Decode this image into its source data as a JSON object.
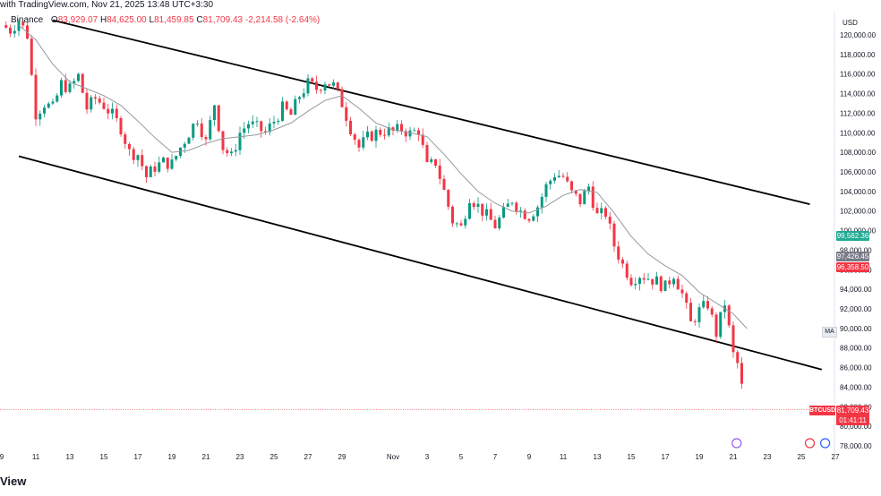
{
  "header": {
    "source_text": "with TradingView.com, Nov 21, 2025 13:48 UTC+3:30",
    "exchange_text": "Binance",
    "ohlc": {
      "open_label": "O",
      "open": "83,929.07",
      "high_label": "H",
      "high": "84,625.00",
      "low_label": "L",
      "low": "81,459.85",
      "close_label": "C",
      "close": "81,709.43",
      "change": "-2,214.58 (-2.64%)"
    }
  },
  "branding": {
    "text": "View"
  },
  "axis_currency": "USD",
  "colors": {
    "up": "#089981",
    "down": "#f23645",
    "ma": "#9598a1",
    "channel": "#000000",
    "green_tag": "#22ab94",
    "gray_tag": "#787b86"
  },
  "tags": {
    "green": "99,562.36",
    "gray": "97,426.45",
    "red": "96,358.50",
    "ma": "MA",
    "ticker": "BTCUSD",
    "last_price": "81,709.43",
    "countdown": "01:41:11"
  },
  "chart_data": {
    "type": "candlestick",
    "symbol": "BTCUSD",
    "ylim": [
      77000,
      122000
    ],
    "y_ticks": [
      {
        "value": 120000,
        "label": "120,000.00"
      },
      {
        "value": 118000,
        "label": "118,000.00"
      },
      {
        "value": 116000,
        "label": "116,000.00"
      },
      {
        "value": 114000,
        "label": "114,000.00"
      },
      {
        "value": 112000,
        "label": "112,000.00"
      },
      {
        "value": 110000,
        "label": "110,000.00"
      },
      {
        "value": 108000,
        "label": "108,000.00"
      },
      {
        "value": 106000,
        "label": "106,000.00"
      },
      {
        "value": 104000,
        "label": "104,000.00"
      },
      {
        "value": 102000,
        "label": "102,000.00"
      },
      {
        "value": 100000,
        "label": "100,000.00"
      },
      {
        "value": 98000,
        "label": "98,000.00"
      },
      {
        "value": 96000,
        "label": "96,000.00"
      },
      {
        "value": 94000,
        "label": "94,000.00"
      },
      {
        "value": 92000,
        "label": "92,000.00"
      },
      {
        "value": 90000,
        "label": "90,000.00"
      },
      {
        "value": 88000,
        "label": "88,000.00"
      },
      {
        "value": 86000,
        "label": "86,000.00"
      },
      {
        "value": 84000,
        "label": "84,000.00"
      },
      {
        "value": 82000,
        "label": "82,000.00"
      },
      {
        "value": 80000,
        "label": "80,000.00"
      },
      {
        "value": 78000,
        "label": "78,000.00"
      }
    ],
    "x_ticks": [
      {
        "day": 0,
        "label": "9"
      },
      {
        "day": 2,
        "label": "11"
      },
      {
        "day": 4,
        "label": "13"
      },
      {
        "day": 6,
        "label": "15"
      },
      {
        "day": 8,
        "label": "17"
      },
      {
        "day": 10,
        "label": "19"
      },
      {
        "day": 12,
        "label": "21"
      },
      {
        "day": 14,
        "label": "23"
      },
      {
        "day": 16,
        "label": "25"
      },
      {
        "day": 18,
        "label": "27"
      },
      {
        "day": 20,
        "label": "29"
      },
      {
        "day": 23,
        "label": "Nov"
      },
      {
        "day": 25,
        "label": "3"
      },
      {
        "day": 27,
        "label": "5"
      },
      {
        "day": 29,
        "label": "7"
      },
      {
        "day": 31,
        "label": "9"
      },
      {
        "day": 33,
        "label": "11"
      },
      {
        "day": 35,
        "label": "13"
      },
      {
        "day": 37,
        "label": "15"
      },
      {
        "day": 39,
        "label": "17"
      },
      {
        "day": 41,
        "label": "19"
      },
      {
        "day": 43,
        "label": "21"
      },
      {
        "day": 45,
        "label": "23"
      },
      {
        "day": 47,
        "label": "25"
      },
      {
        "day": 49,
        "label": "27"
      }
    ],
    "close_series": [
      {
        "day": 0.0,
        "close": 121000
      },
      {
        "day": 0.5,
        "close": 120500
      },
      {
        "day": 1.0,
        "close": 121500
      },
      {
        "day": 1.5,
        "close": 120000
      },
      {
        "day": 1.8,
        "close": 115000
      },
      {
        "day": 2.0,
        "close": 112000
      },
      {
        "day": 2.5,
        "close": 113000
      },
      {
        "day": 3.0,
        "close": 112500
      },
      {
        "day": 3.5,
        "close": 115000
      },
      {
        "day": 4.0,
        "close": 114500
      },
      {
        "day": 4.5,
        "close": 115800
      },
      {
        "day": 5.0,
        "close": 112500
      },
      {
        "day": 5.5,
        "close": 113500
      },
      {
        "day": 6.0,
        "close": 112800
      },
      {
        "day": 6.5,
        "close": 111800
      },
      {
        "day": 7.0,
        "close": 110500
      },
      {
        "day": 7.5,
        "close": 108000
      },
      {
        "day": 8.0,
        "close": 107800
      },
      {
        "day": 8.5,
        "close": 105500
      },
      {
        "day": 9.0,
        "close": 106500
      },
      {
        "day": 9.5,
        "close": 107000
      },
      {
        "day": 10.0,
        "close": 106800
      },
      {
        "day": 10.5,
        "close": 108500
      },
      {
        "day": 11.0,
        "close": 110000
      },
      {
        "day": 11.5,
        "close": 111500
      },
      {
        "day": 12.0,
        "close": 109000
      },
      {
        "day": 12.5,
        "close": 113000
      },
      {
        "day": 13.0,
        "close": 108500
      },
      {
        "day": 13.5,
        "close": 107500
      },
      {
        "day": 14.0,
        "close": 110000
      },
      {
        "day": 14.5,
        "close": 111000
      },
      {
        "day": 15.0,
        "close": 110500
      },
      {
        "day": 15.5,
        "close": 110000
      },
      {
        "day": 16.0,
        "close": 111200
      },
      {
        "day": 16.5,
        "close": 112500
      },
      {
        "day": 17.0,
        "close": 111800
      },
      {
        "day": 17.5,
        "close": 113800
      },
      {
        "day": 18.0,
        "close": 115000
      },
      {
        "day": 18.5,
        "close": 114500
      },
      {
        "day": 19.0,
        "close": 115300
      },
      {
        "day": 19.5,
        "close": 114800
      },
      {
        "day": 20.0,
        "close": 113000
      },
      {
        "day": 20.5,
        "close": 110500
      },
      {
        "day": 21.0,
        "close": 108500
      },
      {
        "day": 21.5,
        "close": 109500
      },
      {
        "day": 22.0,
        "close": 110000
      },
      {
        "day": 22.5,
        "close": 110200
      },
      {
        "day": 23.0,
        "close": 110100
      },
      {
        "day": 23.5,
        "close": 110400
      },
      {
        "day": 24.0,
        "close": 109900
      },
      {
        "day": 24.5,
        "close": 110300
      },
      {
        "day": 25.0,
        "close": 106500
      },
      {
        "day": 25.5,
        "close": 107000
      },
      {
        "day": 26.0,
        "close": 104000
      },
      {
        "day": 26.5,
        "close": 101000
      },
      {
        "day": 27.0,
        "close": 100300
      },
      {
        "day": 27.5,
        "close": 103500
      },
      {
        "day": 28.0,
        "close": 102500
      },
      {
        "day": 28.5,
        "close": 101500
      },
      {
        "day": 29.0,
        "close": 100500
      },
      {
        "day": 29.5,
        "close": 101800
      },
      {
        "day": 30.0,
        "close": 103200
      },
      {
        "day": 30.5,
        "close": 102000
      },
      {
        "day": 31.0,
        "close": 101500
      },
      {
        "day": 31.5,
        "close": 102500
      },
      {
        "day": 32.0,
        "close": 104500
      },
      {
        "day": 32.5,
        "close": 105800
      },
      {
        "day": 33.0,
        "close": 105500
      },
      {
        "day": 33.5,
        "close": 103800
      },
      {
        "day": 34.0,
        "close": 103000
      },
      {
        "day": 34.5,
        "close": 104500
      },
      {
        "day": 35.0,
        "close": 101500
      },
      {
        "day": 35.5,
        "close": 101800
      },
      {
        "day": 36.0,
        "close": 98500
      },
      {
        "day": 36.5,
        "close": 96500
      },
      {
        "day": 37.0,
        "close": 95000
      },
      {
        "day": 37.5,
        "close": 95500
      },
      {
        "day": 38.0,
        "close": 95200
      },
      {
        "day": 38.5,
        "close": 94800
      },
      {
        "day": 39.0,
        "close": 94200
      },
      {
        "day": 39.5,
        "close": 95600
      },
      {
        "day": 40.0,
        "close": 93500
      },
      {
        "day": 40.5,
        "close": 90500
      },
      {
        "day": 41.0,
        "close": 91800
      },
      {
        "day": 41.5,
        "close": 92500
      },
      {
        "day": 42.0,
        "close": 89500
      },
      {
        "day": 42.5,
        "close": 92600
      },
      {
        "day": 43.0,
        "close": 87300
      },
      {
        "day": 43.3,
        "close": 86200
      },
      {
        "day": 43.5,
        "close": 84000
      },
      {
        "day": 43.7,
        "close": 81709
      }
    ],
    "moving_average": [
      {
        "day": 1.0,
        "value": 121000
      },
      {
        "day": 2.0,
        "value": 119500
      },
      {
        "day": 3.0,
        "value": 117000
      },
      {
        "day": 4.0,
        "value": 115200
      },
      {
        "day": 5.0,
        "value": 114500
      },
      {
        "day": 6.0,
        "value": 113800
      },
      {
        "day": 7.0,
        "value": 112800
      },
      {
        "day": 8.0,
        "value": 111200
      },
      {
        "day": 9.0,
        "value": 109500
      },
      {
        "day": 10.0,
        "value": 108000
      },
      {
        "day": 11.0,
        "value": 108200
      },
      {
        "day": 12.0,
        "value": 108900
      },
      {
        "day": 13.0,
        "value": 109400
      },
      {
        "day": 14.0,
        "value": 109600
      },
      {
        "day": 15.0,
        "value": 109800
      },
      {
        "day": 16.0,
        "value": 110300
      },
      {
        "day": 17.0,
        "value": 111000
      },
      {
        "day": 18.0,
        "value": 112200
      },
      {
        "day": 19.0,
        "value": 113300
      },
      {
        "day": 20.0,
        "value": 113800
      },
      {
        "day": 21.0,
        "value": 112500
      },
      {
        "day": 22.0,
        "value": 111000
      },
      {
        "day": 23.0,
        "value": 110300
      },
      {
        "day": 24.0,
        "value": 110000
      },
      {
        "day": 25.0,
        "value": 109600
      },
      {
        "day": 26.0,
        "value": 107800
      },
      {
        "day": 27.0,
        "value": 105800
      },
      {
        "day": 28.0,
        "value": 104000
      },
      {
        "day": 29.0,
        "value": 102800
      },
      {
        "day": 30.0,
        "value": 102000
      },
      {
        "day": 31.0,
        "value": 101800
      },
      {
        "day": 32.0,
        "value": 102500
      },
      {
        "day": 33.0,
        "value": 103600
      },
      {
        "day": 34.0,
        "value": 104200
      },
      {
        "day": 35.0,
        "value": 103900
      },
      {
        "day": 36.0,
        "value": 101800
      },
      {
        "day": 37.0,
        "value": 99400
      },
      {
        "day": 38.0,
        "value": 97600
      },
      {
        "day": 39.0,
        "value": 96400
      },
      {
        "day": 40.0,
        "value": 95400
      },
      {
        "day": 41.0,
        "value": 93700
      },
      {
        "day": 42.0,
        "value": 92600
      },
      {
        "day": 43.0,
        "value": 91500
      },
      {
        "day": 43.8,
        "value": 90000
      }
    ],
    "channel_lines": [
      {
        "from": {
          "day": 3.0,
          "value": 121500
        },
        "to": {
          "day": 47.5,
          "value": 102700
        }
      },
      {
        "from": {
          "day": 1.0,
          "value": 107600
        },
        "to": {
          "day": 48.2,
          "value": 85800
        }
      }
    ],
    "horizontal_marker": {
      "value": 81709.43
    }
  }
}
